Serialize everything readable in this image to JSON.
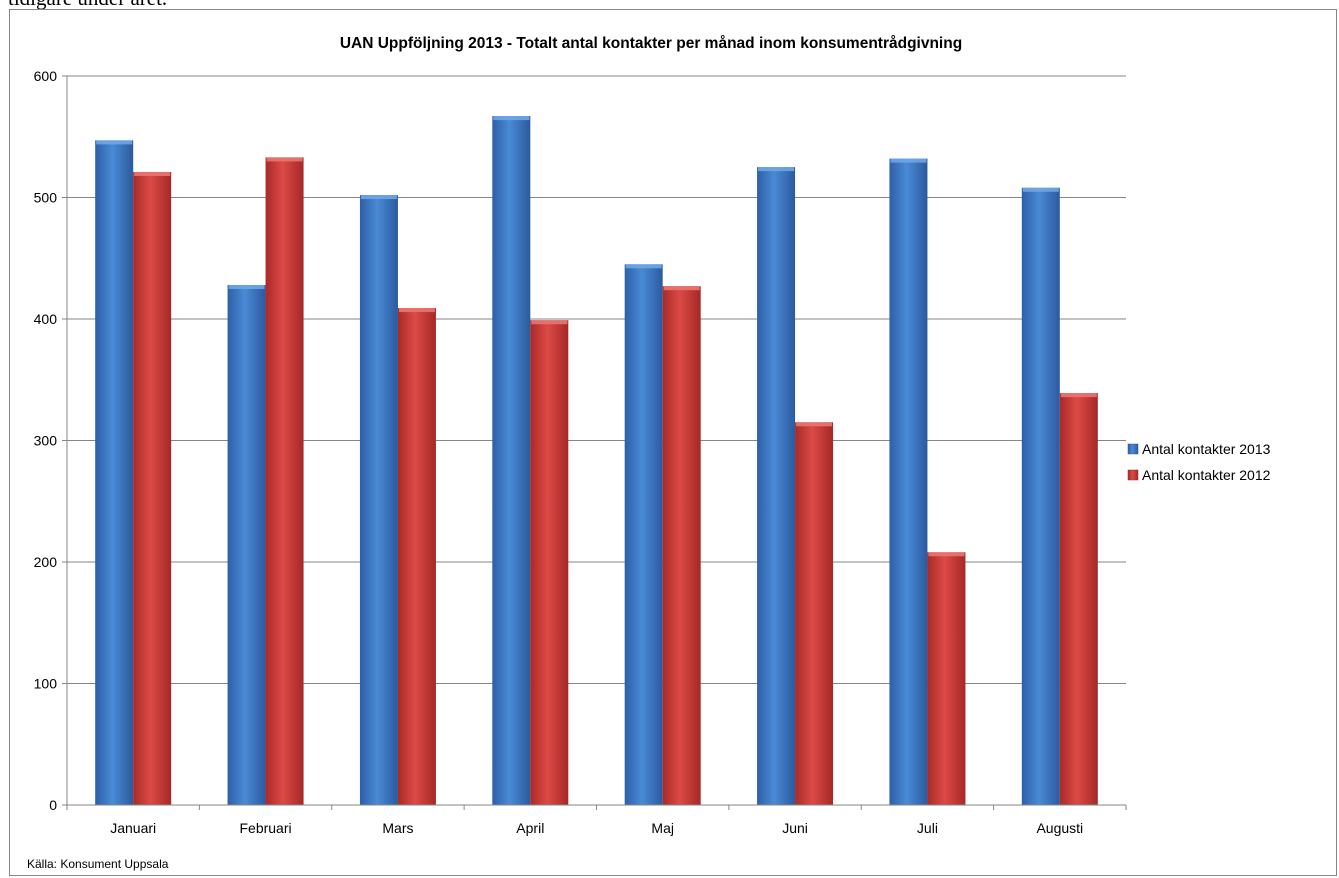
{
  "document": {
    "partial_text": "tidigare under året."
  },
  "chart_data": {
    "type": "bar",
    "title": "UAN Uppföljning 2013 - Totalt antal kontakter per månad inom konsumentrådgivning",
    "xlabel": "",
    "ylabel": "",
    "ylim": [
      0,
      600
    ],
    "yticks": [
      0,
      100,
      200,
      300,
      400,
      500,
      600
    ],
    "grid": true,
    "legend_position": "right",
    "categories": [
      "Januari",
      "Februari",
      "Mars",
      "April",
      "Maj",
      "Juni",
      "Juli",
      "Augusti"
    ],
    "series": [
      {
        "name": "Antal kontakter 2013",
        "color": "#3a78c8",
        "values": [
          547,
          428,
          502,
          567,
          445,
          525,
          532,
          508
        ]
      },
      {
        "name": "Antal kontakter 2012",
        "color": "#cc3a38",
        "values": [
          521,
          533,
          409,
          399,
          427,
          315,
          208,
          339
        ]
      }
    ],
    "source": "Källa: Konsument Uppsala"
  }
}
